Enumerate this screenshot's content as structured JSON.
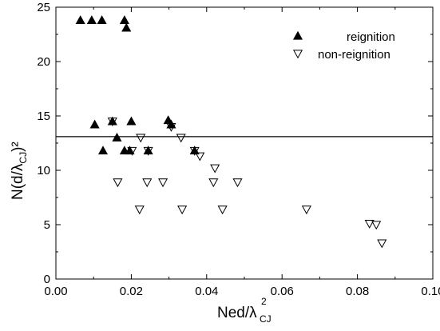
{
  "chart_data": {
    "type": "scatter",
    "title": "",
    "xlabel": {
      "main": "Ned/λ",
      "sup": "2",
      "sub": "CJ"
    },
    "ylabel": {
      "prefix": "N(d/λ",
      "sub": "CJ",
      "suffix": ")²"
    },
    "xlim": [
      0.0,
      0.1
    ],
    "ylim": [
      0,
      25
    ],
    "xticks": [
      0.0,
      0.02,
      0.04,
      0.06,
      0.08,
      0.1
    ],
    "xtick_labels": [
      "0.00",
      "0.02",
      "0.04",
      "0.06",
      "0.08",
      "0.10"
    ],
    "yticks": [
      0,
      5,
      10,
      15,
      20,
      25
    ],
    "ytick_labels": [
      "0",
      "5",
      "10",
      "15",
      "20",
      "25"
    ],
    "grid": false,
    "legend_position": "top-right",
    "reference_line": {
      "y": 13.1
    },
    "series": [
      {
        "name": "reignition",
        "marker": "filled-triangle-up",
        "color": "#000000",
        "points": [
          {
            "x": 0.0065,
            "y": 23.8
          },
          {
            "x": 0.0095,
            "y": 23.8
          },
          {
            "x": 0.0122,
            "y": 23.8
          },
          {
            "x": 0.0182,
            "y": 23.8
          },
          {
            "x": 0.0187,
            "y": 23.1
          },
          {
            "x": 0.0103,
            "y": 14.2
          },
          {
            "x": 0.02,
            "y": 14.5
          },
          {
            "x": 0.0298,
            "y": 14.6
          },
          {
            "x": 0.0162,
            "y": 13.0
          },
          {
            "x": 0.0125,
            "y": 11.8
          },
          {
            "x": 0.0182,
            "y": 11.8
          },
          {
            "x": 0.0196,
            "y": 11.8
          },
          {
            "x": 0.0245,
            "y": 11.8
          },
          {
            "x": 0.0368,
            "y": 11.8
          },
          {
            "x": 0.015,
            "y": 14.5
          },
          {
            "x": 0.0306,
            "y": 14.2
          }
        ]
      },
      {
        "name": "non-reignition",
        "marker": "open-triangle-down",
        "color": "#000000",
        "points": [
          {
            "x": 0.015,
            "y": 14.5
          },
          {
            "x": 0.0306,
            "y": 14.0
          },
          {
            "x": 0.0225,
            "y": 13.0
          },
          {
            "x": 0.0332,
            "y": 13.0
          },
          {
            "x": 0.0202,
            "y": 11.8
          },
          {
            "x": 0.0245,
            "y": 11.8
          },
          {
            "x": 0.0368,
            "y": 11.8
          },
          {
            "x": 0.0382,
            "y": 11.3
          },
          {
            "x": 0.0422,
            "y": 10.2
          },
          {
            "x": 0.0164,
            "y": 8.9
          },
          {
            "x": 0.0242,
            "y": 8.9
          },
          {
            "x": 0.0284,
            "y": 8.9
          },
          {
            "x": 0.0418,
            "y": 8.9
          },
          {
            "x": 0.0482,
            "y": 8.9
          },
          {
            "x": 0.0222,
            "y": 6.4
          },
          {
            "x": 0.0335,
            "y": 6.4
          },
          {
            "x": 0.0442,
            "y": 6.4
          },
          {
            "x": 0.0665,
            "y": 6.4
          },
          {
            "x": 0.0832,
            "y": 5.1
          },
          {
            "x": 0.085,
            "y": 5.0
          },
          {
            "x": 0.0865,
            "y": 3.3
          }
        ]
      }
    ]
  }
}
